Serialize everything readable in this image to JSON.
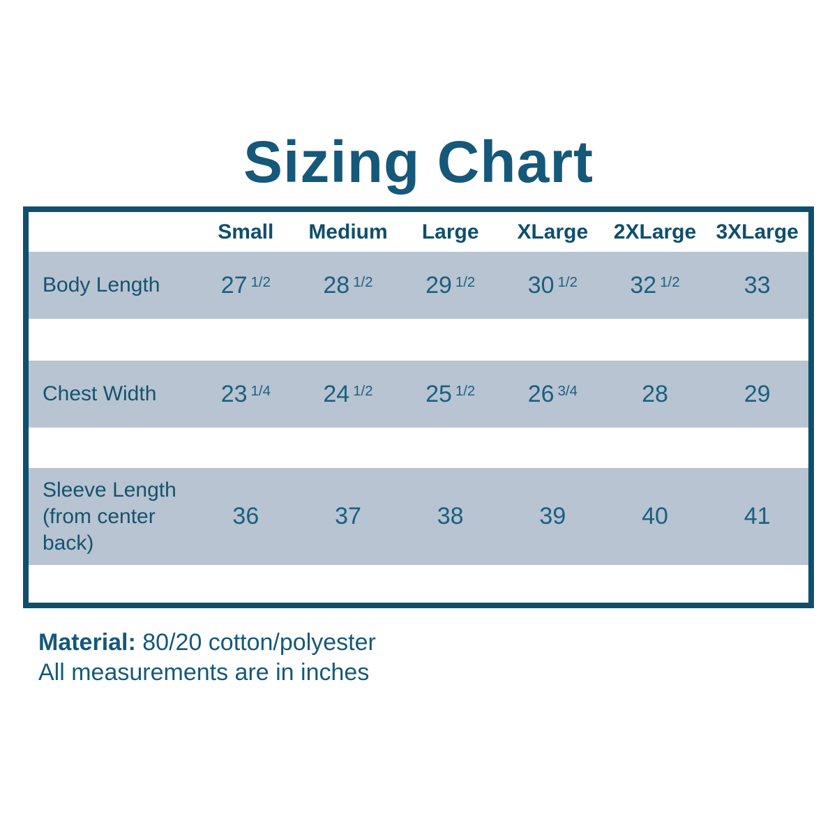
{
  "page": {
    "title": "Sizing Chart",
    "footer": {
      "material_label": "Material:",
      "material_value": " 80/20 cotton/polyester",
      "note": "All measurements are in inches"
    }
  },
  "chart_data": {
    "type": "table",
    "title": "Sizing Chart",
    "units": "inches",
    "columns": [
      "Small",
      "Medium",
      "Large",
      "XLarge",
      "2XLarge",
      "3XLarge"
    ],
    "rows": [
      {
        "label": "Body Length",
        "values": [
          "27 1/2",
          "28 1/2",
          "29 1/2",
          "30 1/2",
          "32 1/2",
          "33"
        ]
      },
      {
        "label": "Chest Width",
        "values": [
          "23 1/4",
          "24 1/2",
          "25 1/2",
          "26 3/4",
          "28",
          "29"
        ]
      },
      {
        "label": "Sleeve Length (from center back)",
        "values": [
          "36",
          "37",
          "38",
          "39",
          "40",
          "41"
        ]
      }
    ]
  },
  "colors": {
    "accent_dark": "#0E4F6D",
    "title_color": "#15587A",
    "header_text": "#0E4E6C",
    "label_text": "#14536F",
    "value_text": "#1B5F80",
    "row_bg": "#B8C4D1",
    "page_bg": "#FFFFFF"
  }
}
